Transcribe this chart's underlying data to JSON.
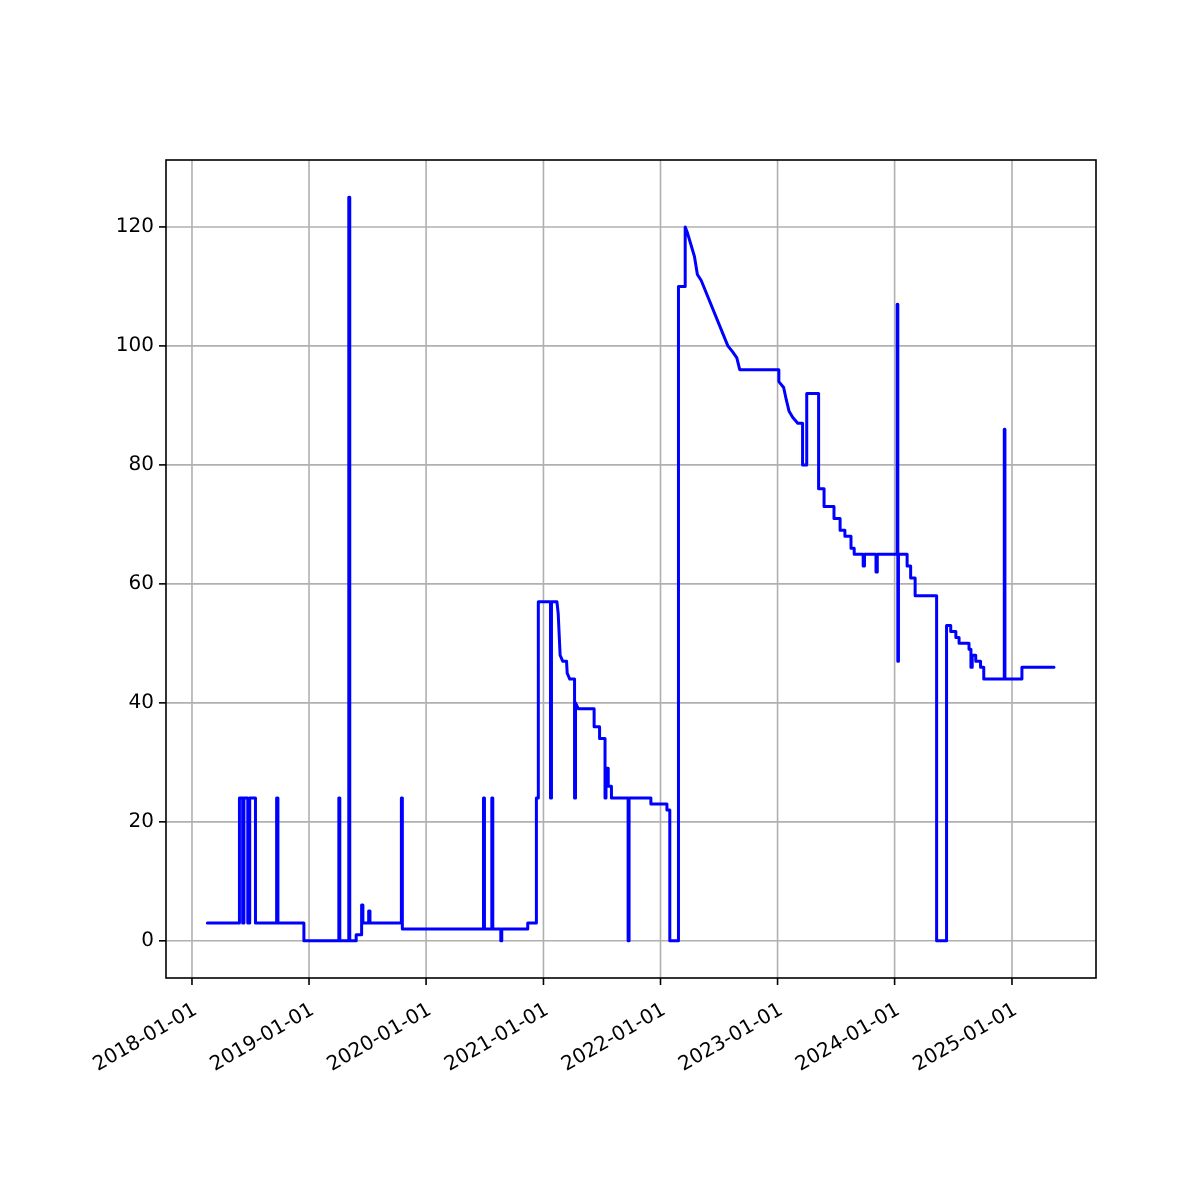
{
  "chart_data": {
    "type": "line",
    "x": [
      "2018-02-18",
      "2018-05-29",
      "2018-05-29",
      "2018-06-08",
      "2018-06-08",
      "2018-06-12",
      "2018-06-12",
      "2018-06-24",
      "2018-06-24",
      "2018-06-30",
      "2018-06-30",
      "2018-07-18",
      "2018-07-18",
      "2018-09-22",
      "2018-09-22",
      "2018-09-26",
      "2018-09-26",
      "2018-12-16",
      "2018-12-16",
      "2019-04-04",
      "2019-04-04",
      "2019-04-07",
      "2019-04-07",
      "2019-05-05",
      "2019-05-05",
      "2019-05-08",
      "2019-05-08",
      "2019-05-28",
      "2019-05-28",
      "2019-06-14",
      "2019-06-14",
      "2019-06-18",
      "2019-06-18",
      "2019-07-06",
      "2019-07-06",
      "2019-07-10",
      "2019-07-10",
      "2019-10-16",
      "2019-10-16",
      "2019-10-19",
      "2019-10-19",
      "2020-06-28",
      "2020-06-28",
      "2020-07-01",
      "2020-07-01",
      "2020-07-24",
      "2020-07-24",
      "2020-07-27",
      "2020-07-27",
      "2020-08-21",
      "2020-08-21",
      "2020-08-24",
      "2020-08-24",
      "2020-11-13",
      "2020-11-13",
      "2020-12-10",
      "2020-12-10",
      "2020-12-16",
      "2020-12-16",
      "2021-01-23",
      "2021-01-23",
      "2021-01-26",
      "2021-01-26",
      "2021-02-12",
      "2021-02-16",
      "2021-02-22",
      "2021-03-02",
      "2021-03-14",
      "2021-03-16",
      "2021-03-24",
      "2021-04-08",
      "2021-04-08",
      "2021-04-11",
      "2021-04-11",
      "2021-04-20",
      "2021-06-08",
      "2021-06-08",
      "2021-06-25",
      "2021-06-25",
      "2021-07-12",
      "2021-07-12",
      "2021-07-15",
      "2021-07-15",
      "2021-07-22",
      "2021-07-22",
      "2021-08-01",
      "2021-08-01",
      "2021-09-22",
      "2021-09-22",
      "2021-09-25",
      "2021-09-25",
      "2021-12-02",
      "2021-12-02",
      "2022-01-21",
      "2022-01-21",
      "2022-01-30",
      "2022-01-30",
      "2022-02-26",
      "2022-02-26",
      "2022-03-19",
      "2022-03-19",
      "2022-03-26",
      "2022-04-06",
      "2022-04-17",
      "2022-04-26",
      "2022-05-08",
      "2022-07-30",
      "2022-08-14",
      "2022-08-27",
      "2022-09-05",
      "2023-01-05",
      "2023-01-05",
      "2023-01-20",
      "2023-01-28",
      "2023-02-06",
      "2023-02-17",
      "2023-03-05",
      "2023-03-20",
      "2023-03-20",
      "2023-04-02",
      "2023-04-02",
      "2023-05-09",
      "2023-05-09",
      "2023-05-26",
      "2023-05-26",
      "2023-06-26",
      "2023-06-26",
      "2023-07-15",
      "2023-07-15",
      "2023-07-30",
      "2023-07-30",
      "2023-08-18",
      "2023-08-18",
      "2023-08-28",
      "2023-08-28",
      "2023-09-25",
      "2023-09-25",
      "2023-09-29",
      "2023-09-29",
      "2023-11-04",
      "2023-11-04",
      "2023-11-08",
      "2023-11-08",
      "2024-01-09",
      "2024-01-09",
      "2024-01-11",
      "2024-01-11",
      "2024-01-13",
      "2024-01-13",
      "2024-02-09",
      "2024-02-09",
      "2024-02-20",
      "2024-02-20",
      "2024-03-05",
      "2024-03-05",
      "2024-05-11",
      "2024-05-11",
      "2024-06-11",
      "2024-06-11",
      "2024-06-24",
      "2024-06-24",
      "2024-07-10",
      "2024-07-10",
      "2024-07-20",
      "2024-07-20",
      "2024-08-20",
      "2024-08-20",
      "2024-08-26",
      "2024-08-26",
      "2024-08-30",
      "2024-08-30",
      "2024-09-10",
      "2024-09-10",
      "2024-09-25",
      "2024-09-25",
      "2024-10-05",
      "2024-10-05",
      "2024-12-08",
      "2024-12-08",
      "2024-12-10",
      "2024-12-10",
      "2025-02-01",
      "2025-02-01",
      "2025-05-12"
    ],
    "series": [
      {
        "color": "#0000ff",
        "values": [
          3,
          3,
          24,
          24,
          3,
          3,
          24,
          24,
          3,
          3,
          24,
          24,
          3,
          3,
          24,
          24,
          3,
          3,
          0,
          0,
          24,
          24,
          0,
          0,
          125,
          125,
          0,
          0,
          1,
          1,
          6,
          6,
          3,
          3,
          5,
          5,
          3,
          3,
          24,
          24,
          2,
          2,
          24,
          24,
          2,
          2,
          24,
          24,
          2,
          2,
          0,
          0,
          2,
          2,
          3,
          3,
          24,
          24,
          57,
          57,
          24,
          24,
          57,
          57,
          55,
          48,
          47,
          47,
          45,
          44,
          44,
          24,
          24,
          40,
          39,
          39,
          36,
          36,
          34,
          34,
          24,
          24,
          29,
          29,
          26,
          26,
          24,
          24,
          0,
          0,
          24,
          24,
          23,
          23,
          22,
          22,
          0,
          0,
          110,
          110,
          120,
          119,
          117,
          115,
          112,
          111,
          100,
          99,
          98,
          96,
          96,
          94,
          93,
          91,
          89,
          88,
          87,
          87,
          80,
          80,
          92,
          92,
          76,
          76,
          73,
          73,
          71,
          71,
          69,
          69,
          68,
          68,
          66,
          66,
          65,
          65,
          63,
          63,
          65,
          65,
          62,
          62,
          65,
          65,
          107,
          107,
          47,
          47,
          65,
          65,
          63,
          63,
          61,
          61,
          58,
          58,
          0,
          0,
          53,
          53,
          52,
          52,
          51,
          51,
          50,
          50,
          49,
          49,
          46,
          46,
          48,
          48,
          47,
          47,
          46,
          46,
          44,
          44,
          86,
          86,
          44,
          44,
          46,
          46
        ]
      }
    ],
    "xlim": [
      "2017-10-12",
      "2025-09-20"
    ],
    "xticks": [
      "2018-01-01",
      "2019-01-01",
      "2020-01-01",
      "2021-01-01",
      "2022-01-01",
      "2023-01-01",
      "2024-01-01",
      "2025-01-01"
    ],
    "ylim": [
      -6.25,
      131.25
    ],
    "yticks": [
      0,
      20,
      40,
      60,
      80,
      100,
      120
    ],
    "grid": true
  }
}
